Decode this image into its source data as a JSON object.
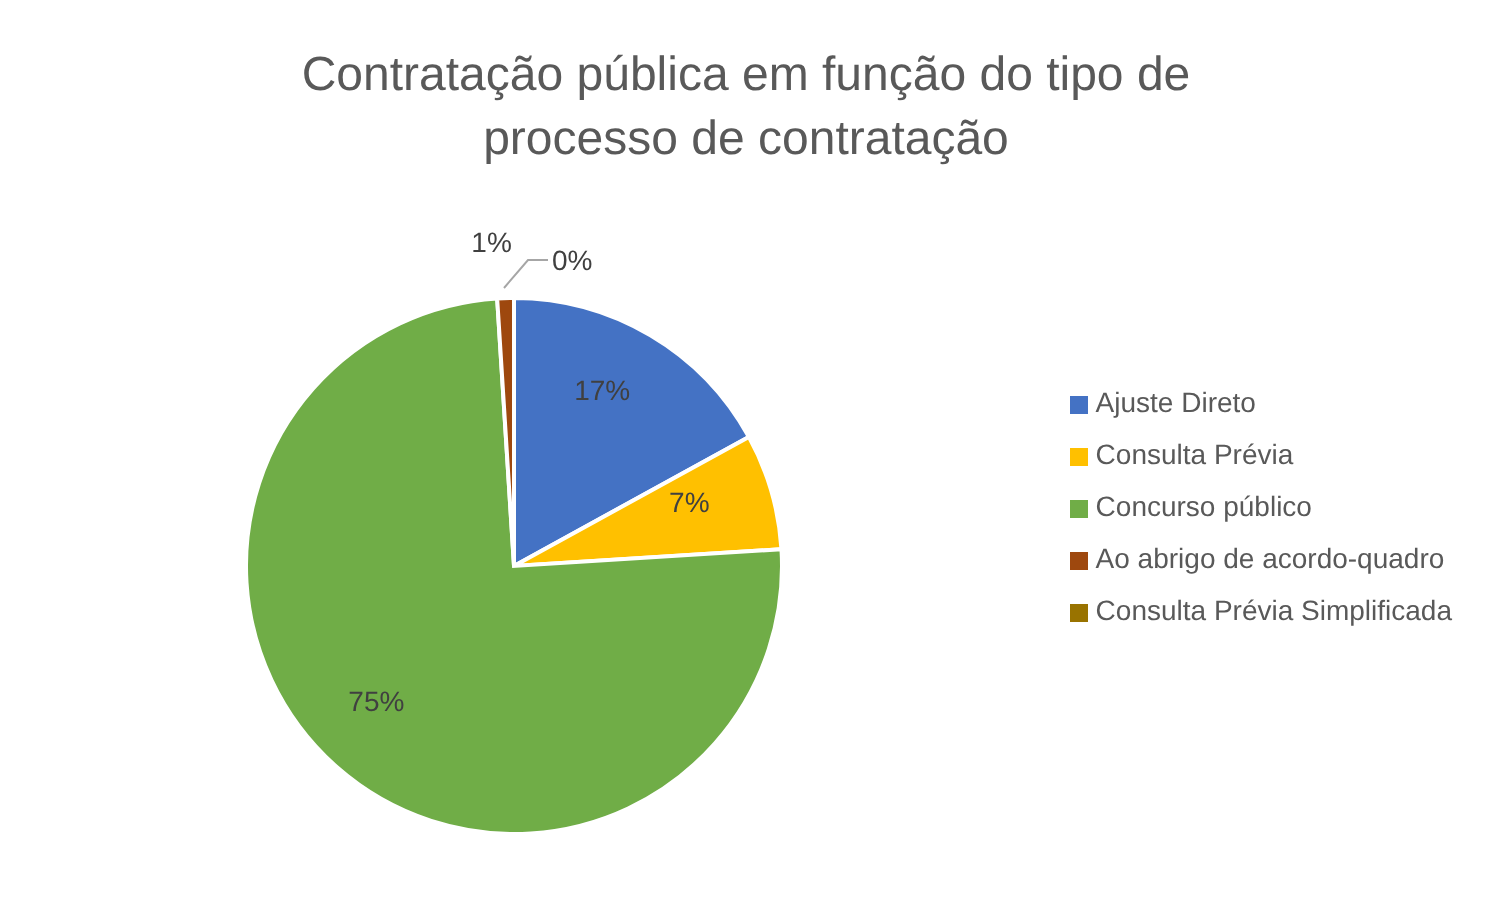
{
  "chart_data": {
    "type": "pie",
    "title": "Contratação pública em função do tipo de processo de contratação",
    "categories": [
      "Ajuste Direto",
      "Consulta Prévia",
      "Concurso público",
      "Ao abrigo de acordo-quadro",
      "Consulta Prévia Simplificada"
    ],
    "values": [
      17,
      7,
      75,
      1,
      0
    ],
    "colors": [
      "#4472c4",
      "#ffc000",
      "#70ad47",
      "#9e480e",
      "#997300"
    ],
    "value_labels": [
      "17%",
      "7%",
      "75%",
      "1%",
      "0%"
    ],
    "legend": "right"
  }
}
